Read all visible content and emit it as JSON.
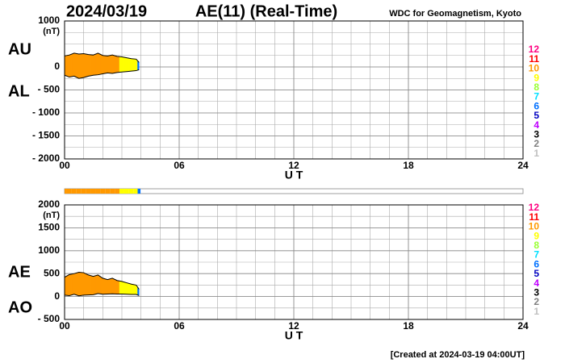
{
  "header": {
    "date": "2024/03/19",
    "title": "AE(11) (Real-Time)",
    "source": "WDC for Geomagnetism, Kyoto"
  },
  "footer": "[Created at 2024-03-19 04:00UT]",
  "station_legend": [
    {
      "count": 12,
      "color": "#ff0080"
    },
    {
      "count": 11,
      "color": "#ff0000"
    },
    {
      "count": 10,
      "color": "#ff9900"
    },
    {
      "count": 9,
      "color": "#ffff00"
    },
    {
      "count": 8,
      "color": "#99ff33"
    },
    {
      "count": 7,
      "color": "#00e0ff"
    },
    {
      "count": 6,
      "color": "#0070ff"
    },
    {
      "count": 5,
      "color": "#0000c0"
    },
    {
      "count": 4,
      "color": "#c000ff"
    },
    {
      "count": 3,
      "color": "#000000"
    },
    {
      "count": 2,
      "color": "#808080"
    },
    {
      "count": 1,
      "color": "#c0c0c0"
    }
  ],
  "chart_data": [
    {
      "type": "band",
      "unit": "(nT)",
      "x_label": "U T",
      "x": [
        0,
        0.25,
        0.5,
        0.75,
        1,
        1.25,
        1.5,
        1.75,
        2,
        2.25,
        2.5,
        2.75,
        3,
        3.25,
        3.5,
        3.75,
        3.9
      ],
      "station_counts": [
        10,
        10,
        10,
        10,
        10,
        10,
        10,
        10,
        10,
        10,
        10,
        10,
        9,
        9,
        9,
        9,
        6
      ],
      "series": [
        {
          "name": "AU",
          "values": [
            240,
            260,
            300,
            280,
            290,
            270,
            260,
            300,
            250,
            240,
            260,
            230,
            220,
            200,
            180,
            170,
            100
          ]
        },
        {
          "name": "AL",
          "values": [
            -180,
            -220,
            -200,
            -250,
            -230,
            -200,
            -180,
            -170,
            -150,
            -130,
            -140,
            -120,
            -110,
            -100,
            -90,
            -80,
            -60
          ]
        }
      ],
      "xlim": [
        0,
        24
      ],
      "xticks": [
        {
          "value": 0,
          "label": "00"
        },
        {
          "value": 6,
          "label": "06"
        },
        12,
        18,
        24
      ],
      "ylim": [
        -2000,
        1000
      ],
      "yticks": [
        {
          "value": -2000,
          "label": "- 2000"
        },
        {
          "value": -1500,
          "label": "- 1500"
        },
        {
          "value": -1000,
          "label": "- 1000"
        },
        {
          "value": -500,
          "label": "- 500"
        },
        0,
        1000
      ]
    },
    {
      "type": "band",
      "unit": "(nT)",
      "x_label": "U T",
      "x": [
        0,
        0.25,
        0.5,
        0.75,
        1,
        1.25,
        1.5,
        1.75,
        2,
        2.25,
        2.5,
        2.75,
        3,
        3.25,
        3.5,
        3.75,
        3.9
      ],
      "station_counts": [
        10,
        10,
        10,
        10,
        10,
        10,
        10,
        10,
        10,
        10,
        10,
        10,
        9,
        9,
        9,
        9,
        6
      ],
      "series": [
        {
          "name": "AE",
          "values": [
            420,
            480,
            500,
            530,
            520,
            470,
            440,
            470,
            400,
            370,
            400,
            350,
            330,
            300,
            270,
            250,
            160
          ]
        },
        {
          "name": "AO",
          "values": [
            30,
            20,
            50,
            15,
            30,
            35,
            40,
            65,
            50,
            55,
            60,
            55,
            55,
            50,
            45,
            45,
            20
          ]
        }
      ],
      "xlim": [
        0,
        24
      ],
      "xticks": [
        {
          "value": 0,
          "label": "00"
        },
        {
          "value": 6,
          "label": "06"
        },
        12,
        18,
        24
      ],
      "ylim": [
        -500,
        2000
      ],
      "yticks": [
        {
          "value": -500,
          "label": "- 500"
        },
        0,
        500,
        1000,
        1500,
        2000
      ]
    }
  ]
}
